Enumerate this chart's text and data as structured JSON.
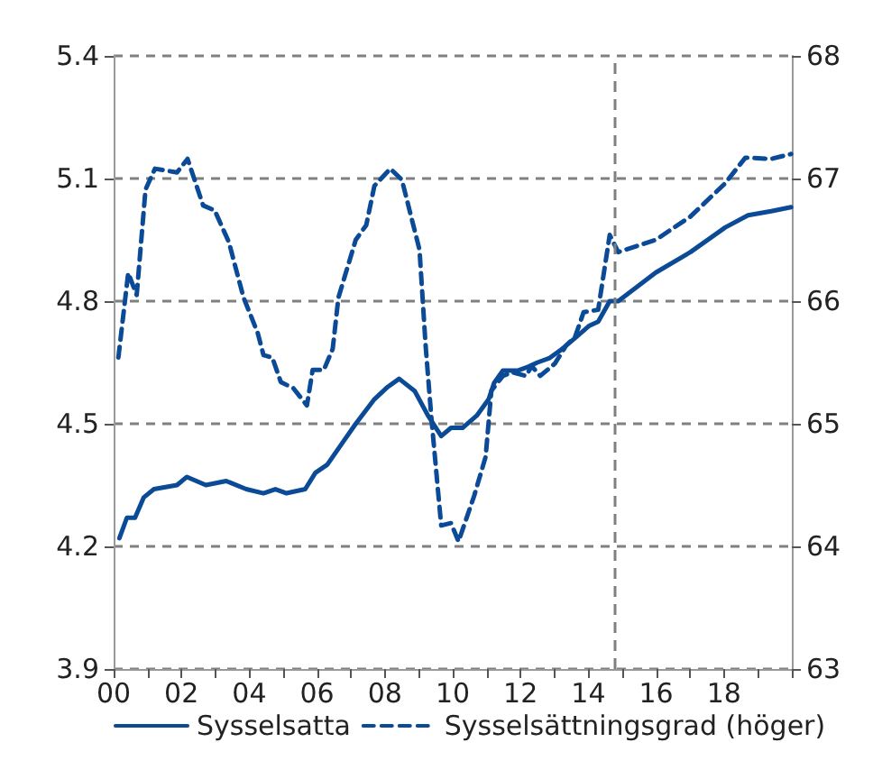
{
  "chart_data": {
    "type": "line",
    "xlim": [
      2000,
      2020
    ],
    "xticks": [
      {
        "value": 2000,
        "label": "00"
      },
      {
        "value": 2001,
        "label": null
      },
      {
        "value": 2002,
        "label": "02"
      },
      {
        "value": 2003,
        "label": null
      },
      {
        "value": 2004,
        "label": "04"
      },
      {
        "value": 2005,
        "label": null
      },
      {
        "value": 2006,
        "label": "06"
      },
      {
        "value": 2007,
        "label": null
      },
      {
        "value": 2008,
        "label": "08"
      },
      {
        "value": 2009,
        "label": null
      },
      {
        "value": 2010,
        "label": "10"
      },
      {
        "value": 2011,
        "label": null
      },
      {
        "value": 2012,
        "label": "12"
      },
      {
        "value": 2013,
        "label": null
      },
      {
        "value": 2014,
        "label": "14"
      },
      {
        "value": 2015,
        "label": null
      },
      {
        "value": 2016,
        "label": "16"
      },
      {
        "value": 2017,
        "label": null
      },
      {
        "value": 2018,
        "label": "18"
      },
      {
        "value": 2019,
        "label": null
      },
      {
        "value": 2020,
        "label": null
      }
    ],
    "ylim": [
      3.9,
      5.4
    ],
    "yticks": [
      3.9,
      4.2,
      4.5,
      4.8,
      5.1,
      5.4
    ],
    "y2lim": [
      63,
      68
    ],
    "y2ticks": [
      63,
      64,
      65,
      66,
      67,
      68
    ],
    "grid": "y",
    "legend": "bottom left",
    "marker": "none",
    "ref_lines": [
      {
        "axis": "x",
        "value": 2014.75,
        "label": null,
        "color": "#808080",
        "line_style": "dashed"
      }
    ],
    "series": [
      {
        "name": "Sysselsatta",
        "color": "#0b4a96",
        "line_style": "solid",
        "x": [
          2000.17,
          2000.39,
          2000.63,
          2000.89,
          2001.19,
          2001.87,
          2002.16,
          2002.72,
          2003.32,
          2003.91,
          2004.42,
          2004.77,
          2005.1,
          2005.65,
          2005.95,
          2006.3,
          2006.72,
          2007.14,
          2007.69,
          2008.08,
          2008.42,
          2008.88,
          2009.27,
          2009.66,
          2009.95,
          2010.29,
          2010.71,
          2011.06,
          2011.22,
          2011.48,
          2011.91,
          2012.24,
          2012.5,
          2012.84,
          2013.18,
          2013.61,
          2014.03,
          2014.29,
          2014.63,
          2014.88,
          2015.99,
          2017.01,
          2018.03,
          2018.71,
          2019.39,
          2019.98
        ],
        "values": [
          4.22,
          4.27,
          4.27,
          4.32,
          4.34,
          4.35,
          4.37,
          4.35,
          4.36,
          4.34,
          4.33,
          4.34,
          4.33,
          4.34,
          4.38,
          4.4,
          4.45,
          4.5,
          4.56,
          4.59,
          4.61,
          4.58,
          4.52,
          4.47,
          4.49,
          4.49,
          4.52,
          4.56,
          4.6,
          4.63,
          4.63,
          4.64,
          4.65,
          4.66,
          4.68,
          4.71,
          4.74,
          4.75,
          4.8,
          4.8,
          4.87,
          4.92,
          4.98,
          5.01,
          5.02,
          5.03
        ]
      },
      {
        "name": "Sysselsättningsgrad (höger)",
        "color": "#0b4a96",
        "line_style": "dashed",
        "axis": "y2",
        "x": [
          2000.14,
          2000.43,
          2000.68,
          2000.94,
          2001.22,
          2001.87,
          2002.18,
          2002.64,
          2002.98,
          2003.4,
          2003.83,
          2004.25,
          2004.42,
          2004.68,
          2004.93,
          2005.3,
          2005.7,
          2005.87,
          2006.2,
          2006.46,
          2006.63,
          2007.14,
          2007.45,
          2007.69,
          2008.16,
          2008.5,
          2009.02,
          2009.2,
          2009.37,
          2009.66,
          2009.95,
          2010.17,
          2010.63,
          2010.97,
          2011.14,
          2011.48,
          2011.74,
          2012.16,
          2012.33,
          2012.58,
          2013.01,
          2013.35,
          2013.61,
          2013.86,
          2014.29,
          2014.63,
          2014.88,
          2015.99,
          2017.01,
          2018.03,
          2018.63,
          2019.39,
          2019.98
        ],
        "values": [
          65.54,
          66.23,
          66.05,
          66.91,
          67.08,
          67.05,
          67.16,
          66.78,
          66.74,
          66.48,
          66.03,
          65.74,
          65.56,
          65.54,
          65.34,
          65.29,
          65.15,
          65.44,
          65.44,
          65.61,
          66.03,
          66.5,
          66.62,
          66.94,
          67.08,
          66.99,
          66.42,
          65.64,
          65.05,
          64.17,
          64.19,
          64.04,
          64.41,
          64.73,
          65.27,
          65.39,
          65.42,
          65.39,
          65.47,
          65.39,
          65.49,
          65.64,
          65.71,
          65.91,
          65.93,
          66.54,
          66.4,
          66.5,
          66.69,
          66.96,
          67.17,
          67.16,
          67.2
        ]
      }
    ]
  }
}
